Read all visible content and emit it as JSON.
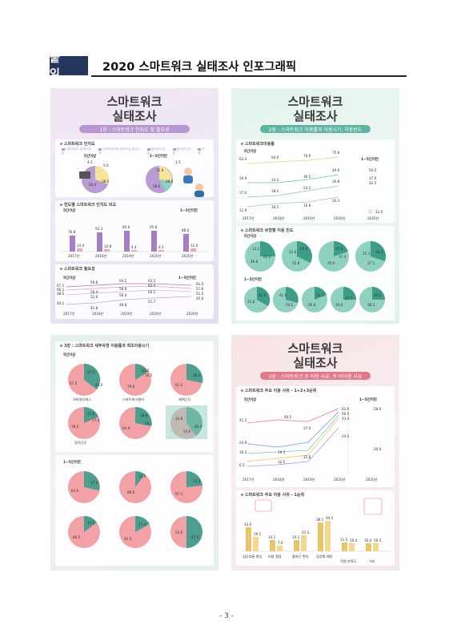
{
  "header": {
    "tag": "붙 임",
    "title": "2020 스마트워크 실태조사 인포그래픽"
  },
  "panels": {
    "p1": {
      "title_line1": "스마트워크",
      "title_line2": "실태조사",
      "banner": "1장 : 스마트워크 인지도 및 필요성",
      "box1": "스마트워크 인지도",
      "legend1": [
        "스마트워크 잘 알고있음",
        "스마트워크에 대해 조금 알고있음",
        "들어본적 있음",
        "들어본적 없음",
        "모름"
      ],
      "sub_a": "5인이상",
      "sub_b": "1~5인미만",
      "pie_a": [
        "4.2",
        "5.0",
        "38.5",
        "50.4"
      ],
      "pie_b": [
        "1.5",
        "12.0",
        "28.5",
        "58.0"
      ],
      "box2": "연도별 스마트워크 인지도 비교",
      "sub2a": "5인이상",
      "sub2b": "1~5인미만",
      "bar_years": [
        "2017년",
        "2018년",
        "2019년",
        "2020년",
        "2020년"
      ],
      "bar_hi": [
        "76.8",
        "92.3",
        "95.6",
        "95.8",
        "88.0"
      ],
      "bar_lo": [
        "24.0",
        "10.8",
        "4.4",
        "4.2",
        "12.0"
      ],
      "box3": "스마트워크 필요성",
      "sub3a": "5인이상",
      "sub3b": "1~5인미만",
      "line_nums": [
        "67.1",
        "66.1",
        "48.5",
        "40.1",
        "59.6",
        "56.4",
        "52.6",
        "41.8",
        "64.2",
        "58.9",
        "56.4",
        "46.8",
        "63.2",
        "62.4",
        "60.1",
        "51.7",
        "61.5",
        "57.6",
        "51.5",
        "45.0"
      ],
      "line_years": [
        "2017년",
        "2018년",
        "2019년",
        "2020년",
        "2020년"
      ]
    },
    "p2": {
      "title_line1": "스마트워크",
      "title_line2": "실태조사",
      "banner": "2장 : 스마트워크 이용률과 이용시기, 이용빈도",
      "box1": "스마트워크이용률",
      "sub_a": "5인이상",
      "sub_b": "1~5인미만",
      "nums_top": [
        "63.4",
        "64.9",
        "70.6",
        "75.8",
        "54.5",
        "34.9",
        "33.3",
        "36.5",
        "40.0",
        "37.0",
        "17.0",
        "18.2",
        "24.5",
        "30.8",
        "32.5",
        "11.9",
        "16.5",
        "16.8",
        "20.3",
        "12.0"
      ],
      "years": [
        "2017년",
        "2018년",
        "2019년",
        "2020년",
        "2020년"
      ],
      "box2": "스마트워크 유형별 이용 빈도",
      "pies_a": [
        [
          "13.1",
          "46.6",
          "40.3"
        ],
        [
          "25.6",
          "22.6",
          "52.8"
        ],
        [
          "17.6",
          "37.4",
          "45.0"
        ],
        [
          "25.3",
          "33.4",
          "37.1"
        ]
      ],
      "pie_labels": [
        "모바일오피스",
        "원격근무(재택 포함)",
        "스마트오피스",
        "유연근무제"
      ],
      "pies_b": [
        [
          "31.8",
          "61.4"
        ],
        [
          "42.6",
          "54.2"
        ],
        [
          "52.3",
          "40.0"
        ],
        [
          "34.0",
          "47.7"
        ],
        [
          "30.5",
          "38.3"
        ]
      ]
    },
    "p3": {
      "banner": "3장 : 스마트워크 세부유형 이용률과 최초이용시기",
      "sub_a": "5인이상",
      "sub_b": "1~5인미만",
      "pies_a": [
        [
          "57.5",
          "29.0",
          "43.0"
        ],
        [
          "79.8",
          "22.2",
          "10.5"
        ],
        [
          "61.3",
          "38.5"
        ],
        [
          "78.5",
          "21.5",
          "17.4"
        ],
        [
          "61.9",
          "18.9",
          "20.1"
        ],
        [
          "34.8",
          "13.0",
          "65.3"
        ]
      ],
      "pie_labels_a": [
        "모바일오피스",
        "스마트워크센터",
        "재택근무",
        "원격근무"
      ],
      "pies_b": [
        [
          "63.0",
          "37.0"
        ],
        [
          "88.0",
          "12.0"
        ],
        [
          "67.5",
          "22.5"
        ],
        [
          "80.5",
          "14.5"
        ],
        [
          "92.5",
          "17.4"
        ],
        [
          "53.0",
          "47.0"
        ]
      ]
    },
    "p4": {
      "title_line1": "스마트워크",
      "title_line2": "실태조사",
      "banner": "3장 : 스마트워크 주 이용 사유, 주 비이용 사유",
      "box1": "스마트워크 주요 이용 사유 - 1+2+3순위",
      "sub_a": "5인이상",
      "sub_b": "1~5인미만",
      "nums": [
        "63.0",
        "58.0",
        "56.5",
        "43.4",
        "41.5",
        "40.5",
        "37.0",
        "24.9",
        "24.5",
        "20.0",
        "19.3",
        "16.5",
        "15.8",
        "12.5",
        "6.5"
      ],
      "years": [
        "2017년",
        "2018년",
        "2019년",
        "2020년",
        "2020년"
      ],
      "box2": "스마트워크 주요 이용 사유 - 1순위",
      "bars": [
        [
          "33.0",
          "19.1"
        ],
        [
          "14.1",
          "7.6"
        ],
        [
          "14.1",
          "21.5"
        ],
        [
          "38.1",
          "40.5"
        ],
        [
          "11.5",
          "10.4"
        ],
        [
          "10.4",
          "10.3"
        ]
      ],
      "bar_labels": [
        "업무효율 향상",
        "비용 절감",
        "출퇴근 편의",
        "감염병 예방",
        "직원 만족도",
        "기타"
      ]
    }
  },
  "footer": {
    "page": "- 3 -"
  }
}
